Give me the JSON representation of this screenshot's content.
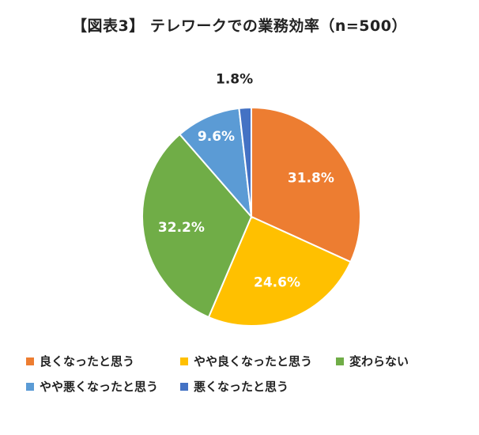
{
  "chart_data": {
    "type": "pie",
    "title": "【図表3】 テレワークでの業務効率（n=500）",
    "slices": [
      {
        "label": "良くなったと思う",
        "value": 31.8,
        "display": "31.8%",
        "color": "#ED7D31"
      },
      {
        "label": "やや良くなったと思う",
        "value": 24.6,
        "display": "24.6%",
        "color": "#FFC000"
      },
      {
        "label": "変わらない",
        "value": 32.2,
        "display": "32.2%",
        "color": "#70AD47"
      },
      {
        "label": "やや悪くなったと思う",
        "value": 9.6,
        "display": "9.6%",
        "color": "#5B9BD5"
      },
      {
        "label": "悪くなったと思う",
        "value": 1.8,
        "display": "1.8%",
        "color": "#4472C4"
      }
    ],
    "legend_position": "bottom"
  }
}
